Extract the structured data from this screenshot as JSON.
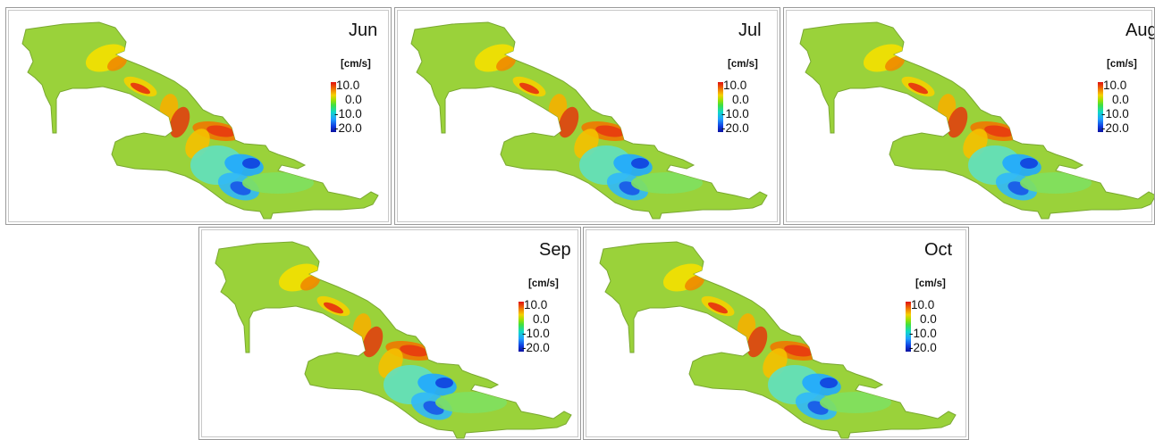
{
  "panels": [
    {
      "month": "Jun",
      "unit": "[cm/s]",
      "ticks": [
        "10.0",
        "0.0",
        "-10.0",
        "-20.0"
      ]
    },
    {
      "month": "Jul",
      "unit": "[cm/s]",
      "ticks": [
        "10.0",
        "0.0",
        "-10.0",
        "-20.0"
      ]
    },
    {
      "month": "Aug",
      "unit": "[cm/s]",
      "ticks": [
        "10.0",
        "0.0",
        "-10.0",
        "-20.0"
      ]
    },
    {
      "month": "Sep",
      "unit": "[cm/s]",
      "ticks": [
        "10.0",
        "0.0",
        "-10.0",
        "-20.0"
      ]
    },
    {
      "month": "Oct",
      "unit": "[cm/s]",
      "ticks": [
        "10.0",
        "0.0",
        "-10.0",
        "-20.0"
      ]
    }
  ],
  "colorscale": {
    "colors": [
      "#e01010",
      "#f07800",
      "#f5d000",
      "#a0e000",
      "#40e040",
      "#10d8c8",
      "#20a0ff",
      "#1040e0",
      "#0a10a0"
    ],
    "land_color": "#9ad23a"
  }
}
